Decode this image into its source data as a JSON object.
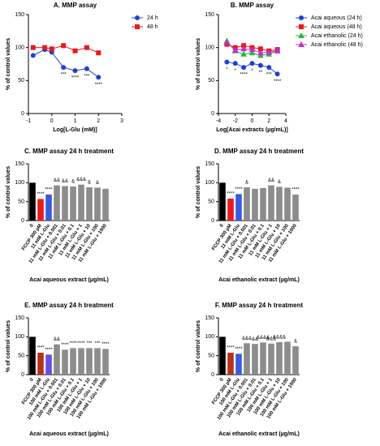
{
  "chart_data": [
    {
      "type": "line",
      "title": "A. MMP assay",
      "xlabel": "Log[L-Glu (mM)]",
      "ylabel": "% of control values",
      "x": [
        -0.8,
        -0.3,
        0,
        0.5,
        1,
        1.5,
        2
      ],
      "series": [
        {
          "name": "24 h",
          "color": "#1f3fd6",
          "marker": "circle",
          "values": [
            88,
            97,
            93,
            70,
            65,
            68,
            55
          ],
          "annotations": [
            null,
            null,
            null,
            "***",
            "****",
            "***",
            "****"
          ]
        },
        {
          "name": "48 h",
          "color": "#e8191c",
          "marker": "square",
          "values": [
            100,
            100,
            98,
            103,
            95,
            100,
            92
          ],
          "annotations": [
            null,
            null,
            null,
            null,
            null,
            null,
            null
          ]
        }
      ],
      "xlim": [
        -1,
        3
      ],
      "xticks": [
        -1,
        0,
        1,
        2,
        3
      ],
      "ylim": [
        0,
        150
      ],
      "yticks": [
        0,
        50,
        100,
        150
      ]
    },
    {
      "type": "line",
      "title": "B. MMP assay",
      "xlabel": "Log[Acai extracts (µg/mL)]",
      "ylabel": "% of control values",
      "x": [
        -3,
        -2,
        -1,
        0,
        1,
        2,
        3
      ],
      "series": [
        {
          "name": "Acai aqueous (24 h)",
          "color": "#1f3fd6",
          "marker": "circle",
          "values": [
            78,
            76,
            70,
            76,
            73,
            70,
            60
          ],
          "annotations": [
            "*",
            "*",
            "****",
            "*",
            "**",
            "***",
            "****"
          ]
        },
        {
          "name": "Acai aqueous (48 h)",
          "color": "#e8191c",
          "marker": "square",
          "values": [
            105,
            100,
            103,
            100,
            98,
            95,
            97
          ],
          "annotations": [
            null,
            null,
            null,
            null,
            null,
            null,
            null
          ]
        },
        {
          "name": "Acai ethanolic (24 h)",
          "color": "#2bb34a",
          "marker": "triangle",
          "values": [
            110,
            95,
            90,
            92,
            88,
            90,
            95
          ],
          "annotations": [
            null,
            null,
            null,
            null,
            null,
            null,
            null
          ]
        },
        {
          "name": "Acai ethanolic (48 h)",
          "color": "#c22ed1",
          "marker": "triangle",
          "values": [
            108,
            96,
            98,
            97,
            92,
            93,
            95
          ],
          "annotations": [
            null,
            null,
            null,
            null,
            null,
            null,
            null
          ]
        }
      ],
      "xlim": [
        -4,
        4
      ],
      "xticks": [
        -4,
        -2,
        0,
        2,
        4
      ],
      "ylim": [
        0,
        150
      ],
      "yticks": [
        0,
        50,
        100,
        150
      ]
    },
    {
      "type": "bar",
      "title": "C. MMP assay 24 h treatment",
      "xlabel": "Acai aqueous extract (µg/mL)",
      "ylabel": "% of control values",
      "categories": [
        "0",
        "FCCP 300 µM",
        "11 mM L-Glu",
        "11 mM L-Glu + 0.001",
        "11 mM L-Glu + 0.01",
        "11 mM L-Glu + 0.1",
        "11 mM L-Glu + 1",
        "11 mM L-Glu + 10",
        "11 mM L-Glu + 100",
        "11 mM L-Glu + 1000"
      ],
      "values": [
        100,
        57,
        69,
        93,
        91,
        90,
        95,
        88,
        87,
        84
      ],
      "colors": [
        "#000000",
        "#e8191c",
        "#3b5bdb",
        "#8c8c8c",
        "#8c8c8c",
        "#8c8c8c",
        "#8c8c8c",
        "#8c8c8c",
        "#8c8c8c",
        "#8c8c8c"
      ],
      "annotations": [
        null,
        "****",
        "****",
        "&&",
        "&&",
        "&",
        "&&&",
        "&",
        "&",
        null
      ],
      "ylim": [
        0,
        150
      ],
      "yticks": [
        0,
        50,
        100,
        150
      ]
    },
    {
      "type": "bar",
      "title": "D. MMP assay 24 h treatment",
      "xlabel": "Acai ethanolic extract (µg/mL)",
      "ylabel": "% of control values",
      "categories": [
        "0",
        "FCCP 300 µM",
        "11 mM L-Glu",
        "11 mM L-Glu + 0.001",
        "11 mM L-Glu + 0.01",
        "11 mM L-Glu + 0.1",
        "11 mM L-Glu + 1",
        "11 mM L-Glu + 10",
        "11 mM L-Glu + 100",
        "11 mM L-Glu + 1000"
      ],
      "values": [
        100,
        58,
        70,
        88,
        84,
        86,
        93,
        89,
        87,
        69
      ],
      "colors": [
        "#000000",
        "#e8191c",
        "#3b5bdb",
        "#8c8c8c",
        "#8c8c8c",
        "#8c8c8c",
        "#8c8c8c",
        "#8c8c8c",
        "#8c8c8c",
        "#8c8c8c"
      ],
      "annotations": [
        null,
        "****",
        "****",
        "&",
        null,
        null,
        "&&",
        "&",
        null,
        "****"
      ],
      "ylim": [
        0,
        150
      ],
      "yticks": [
        0,
        50,
        100,
        150
      ]
    },
    {
      "type": "bar",
      "title": "E. MMP assay 24 h treatment",
      "xlabel": "Acai aqueous extract (µg/mL)",
      "ylabel": "% of control values",
      "categories": [
        "0",
        "FCCP 300 µM",
        "100 mM L-Glu",
        "100 mM L-Glu + 0.001",
        "100 mM L-Glu + 0.01",
        "100 mM L-Glu + 0.1",
        "100 mM L-Glu + 1",
        "100 mM L-Glu + 10",
        "100 mM L-Glu + 100",
        "100 mM L-Glu + 1000"
      ],
      "values": [
        100,
        58,
        53,
        80,
        66,
        70,
        70,
        70,
        70,
        68
      ],
      "colors": [
        "#000000",
        "#b5331a",
        "#6a4ee0",
        "#8c8c8c",
        "#8c8c8c",
        "#8c8c8c",
        "#8c8c8c",
        "#8c8c8c",
        "#8c8c8c",
        "#8c8c8c"
      ],
      "annotations": [
        null,
        "****",
        "****",
        "&&",
        "****",
        "****",
        "****",
        "***",
        "***",
        "****"
      ],
      "ylim": [
        0,
        150
      ],
      "yticks": [
        0,
        50,
        100,
        150
      ]
    },
    {
      "type": "bar",
      "title": "F. MMP assay 24 h treatment",
      "xlabel": "Acai ethanolic extract (µg/mL)",
      "ylabel": "% of control values",
      "categories": [
        "0",
        "FCCP 300 µM",
        "100 mM L-Glu",
        "100 mM L-Glu + 0.001",
        "100 mM L-Glu + 0.01",
        "100 mM L-Glu + 0.1",
        "100 mM L-Glu + 1",
        "100 mM L-Glu + 10",
        "100 mM L-Glu + 100",
        "100 mM L-Glu + 1000"
      ],
      "values": [
        100,
        58,
        55,
        83,
        81,
        85,
        82,
        86,
        87,
        75
      ],
      "colors": [
        "#000000",
        "#b5331a",
        "#3b5bdb",
        "#8c8c8c",
        "#8c8c8c",
        "#8c8c8c",
        "#8c8c8c",
        "#8c8c8c",
        "#8c8c8c",
        "#8c8c8c"
      ],
      "annotations": [
        null,
        "****",
        "****",
        "&&&",
        "&&",
        "&&&&",
        "&&&",
        "&&&&",
        null,
        "&"
      ],
      "ylim": [
        0,
        150
      ],
      "yticks": [
        0,
        50,
        100,
        150
      ]
    }
  ]
}
